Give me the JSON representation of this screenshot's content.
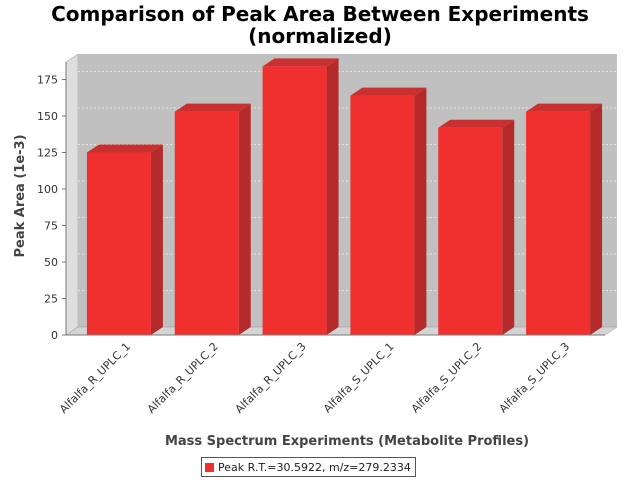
{
  "colors": {
    "bar_front": "#f0302f",
    "bar_side": "#b52a2a",
    "bar_top": "#c93030",
    "plot_back": "#c0c0c0",
    "plot_floor": "#d4d4d4",
    "plot_wall": "#dedede"
  },
  "chart_data": {
    "type": "bar",
    "title_lines": [
      "Comparison of Peak Area Between Experiments",
      "(normalized)"
    ],
    "xlabel": "Mass Spectrum Experiments (Metabolite Profiles)",
    "ylabel": "Peak Area (1e-3)",
    "categories": [
      "Alfalfa_R_UPLC_1",
      "Alfalfa_R_UPLC_2",
      "Alfalfa_R_UPLC_3",
      "Alfalfa_S_UPLC_1",
      "Alfalfa_S_UPLC_2",
      "Alfalfa_S_UPLC_3"
    ],
    "series": [
      {
        "name": "Peak R.T.=30.5922, m/z=279.2334",
        "values": [
          125,
          153,
          184,
          164,
          142,
          153
        ]
      }
    ],
    "ylim": [
      0,
      187
    ],
    "yticks": [
      0,
      25,
      50,
      75,
      100,
      125,
      150,
      175
    ],
    "grid": true,
    "legend_position": "bottom",
    "style_3d": true
  }
}
